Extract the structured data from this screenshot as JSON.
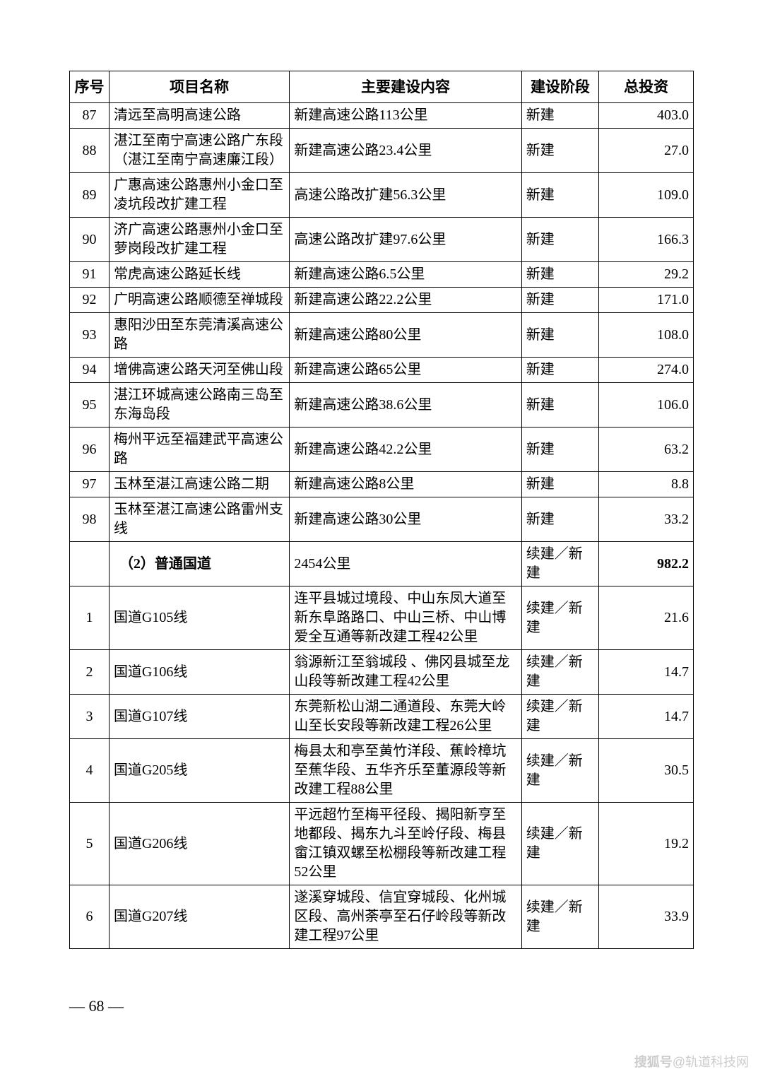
{
  "table": {
    "columns": [
      "序号",
      "项目名称",
      "主要建设内容",
      "建设阶段",
      "总投资"
    ],
    "col_widths_pct": [
      5.2,
      23.8,
      30.6,
      10.2,
      12.5
    ],
    "header_fontsize": 21,
    "cell_fontsize": 20,
    "border_color": "#000000",
    "background_color": "#ffffff",
    "text_color": "#000000",
    "rows": [
      {
        "seq": "87",
        "name": "清远至高明高速公路",
        "content": "新建高速公路113公里",
        "stage": "新建",
        "invest": "403.0"
      },
      {
        "seq": "88",
        "name": "湛江至南宁高速公路广东段（湛江至南宁高速廉江段）",
        "content": "新建高速公路23.4公里",
        "stage": "新建",
        "invest": "27.0"
      },
      {
        "seq": "89",
        "name": "广惠高速公路惠州小金口至凌坑段改扩建工程",
        "content": "高速公路改扩建56.3公里",
        "stage": "新建",
        "invest": "109.0"
      },
      {
        "seq": "90",
        "name": "济广高速公路惠州小金口至萝岗段改扩建工程",
        "content": "高速公路改扩建97.6公里",
        "stage": "新建",
        "invest": "166.3"
      },
      {
        "seq": "91",
        "name": "常虎高速公路延长线",
        "content": "新建高速公路6.5公里",
        "stage": "新建",
        "invest": "29.2"
      },
      {
        "seq": "92",
        "name": "广明高速公路顺德至禅城段",
        "content": "新建高速公路22.2公里",
        "stage": "新建",
        "invest": "171.0"
      },
      {
        "seq": "93",
        "name": "惠阳沙田至东莞清溪高速公路",
        "content": "新建高速公路80公里",
        "stage": "新建",
        "invest": "108.0"
      },
      {
        "seq": "94",
        "name": "增佛高速公路天河至佛山段",
        "content": "新建高速公路65公里",
        "stage": "新建",
        "invest": "274.0"
      },
      {
        "seq": "95",
        "name": "湛江环城高速公路南三岛至东海岛段",
        "content": "新建高速公路38.6公里",
        "stage": "新建",
        "invest": "106.0"
      },
      {
        "seq": "96",
        "name": "梅州平远至福建武平高速公路",
        "content": "新建高速公路42.2公里",
        "stage": "新建",
        "invest": "63.2"
      },
      {
        "seq": "97",
        "name": "玉林至湛江高速公路二期",
        "content": "新建高速公路8公里",
        "stage": "新建",
        "invest": "8.8"
      },
      {
        "seq": "98",
        "name": "玉林至湛江高速公路雷州支线",
        "content": "新建高速公路30公里",
        "stage": "新建",
        "invest": "33.2"
      },
      {
        "seq": "",
        "name": "（2）普通国道",
        "content": "2454公里",
        "stage": "续建／新建",
        "invest": "982.2",
        "is_section": true
      },
      {
        "seq": "1",
        "name": "国道G105线",
        "content": "连平县城过境段、中山东凤大道至新东阜路路口、中山三桥、中山博爱全互通等新改建工程42公里",
        "stage": "续建／新建",
        "invest": "21.6"
      },
      {
        "seq": "2",
        "name": "国道G106线",
        "content": "翁源新江至翁城段 、佛冈县城至龙山段等新改建工程42公里",
        "stage": "续建／新建",
        "invest": "14.7"
      },
      {
        "seq": "3",
        "name": "国道G107线",
        "content": "东莞新松山湖二通道段、东莞大岭山至长安段等新改建工程26公里",
        "stage": "续建／新建",
        "invest": "14.7"
      },
      {
        "seq": "4",
        "name": "国道G205线",
        "content": "梅县太和亭至黄竹洋段、蕉岭樟坑至蕉华段、五华齐乐至董源段等新改建工程88公里",
        "stage": "续建／新建",
        "invest": "30.5"
      },
      {
        "seq": "5",
        "name": "国道G206线",
        "content": "平远超竹至梅平径段、揭阳新亨至地都段、揭东九斗至岭仔段、梅县畲江镇双螺至松棚段等新改建工程52公里",
        "stage": "续建／新建",
        "invest": "19.2"
      },
      {
        "seq": "6",
        "name": "国道G207线",
        "content": "遂溪穿城段、信宜穿城段、化州城区段、高州荼亭至石仔岭段等新改建工程97公里",
        "stage": "续建／新建",
        "invest": "33.9"
      }
    ]
  },
  "page_number": "— 68 —",
  "watermark": {
    "prefix": "搜狐号",
    "suffix": "@轨道科技网"
  }
}
